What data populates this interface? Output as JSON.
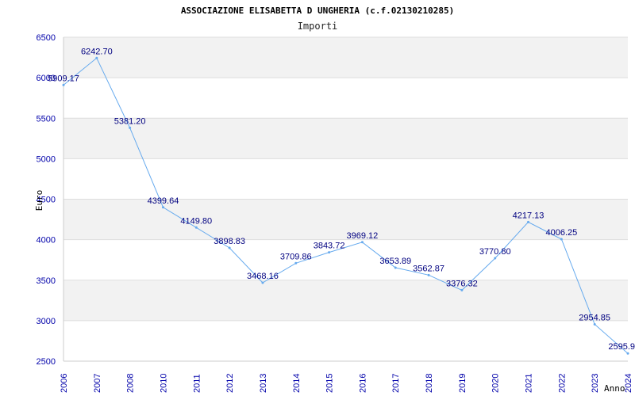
{
  "chart_data": {
    "type": "line",
    "title": "ASSOCIAZIONE ELISABETTA D UNGHERIA (c.f.02130210285)",
    "subtitle": "Importi",
    "xlabel": "Anno",
    "ylabel": "Euro",
    "x": [
      "2006",
      "2007",
      "2008",
      "2010",
      "2011",
      "2012",
      "2013",
      "2014",
      "2015",
      "2016",
      "2017",
      "2018",
      "2019",
      "2020",
      "2021",
      "2022",
      "2023",
      "2024"
    ],
    "values": [
      5909.17,
      6242.7,
      5381.2,
      4399.64,
      4149.8,
      3898.83,
      3468.16,
      3709.86,
      3843.72,
      3969.12,
      3653.89,
      3562.87,
      3376.32,
      3770.8,
      4217.13,
      4006.25,
      2954.85,
      2595.9
    ],
    "data_labels": [
      "5909.17",
      "6242.70",
      "5381.20",
      "4399.64",
      "4149.80",
      "3898.83",
      "3468.16",
      "3709.86",
      "3843.72",
      "3969.12",
      "3653.89",
      "3562.87",
      "3376.32",
      "3770.80",
      "4217.13",
      "4006.25",
      "2954.85",
      "2595.9"
    ],
    "y_ticks": [
      "2500",
      "3000",
      "3500",
      "4000",
      "4500",
      "5000",
      "5500",
      "6000",
      "6500"
    ],
    "ylim": [
      2500,
      6500
    ],
    "grid": true,
    "colors": {
      "line": "#66aaee",
      "band": "#f2f2f2",
      "grid": "#dddddd",
      "tick_text": "#0000aa",
      "label_text": "#000080"
    }
  }
}
